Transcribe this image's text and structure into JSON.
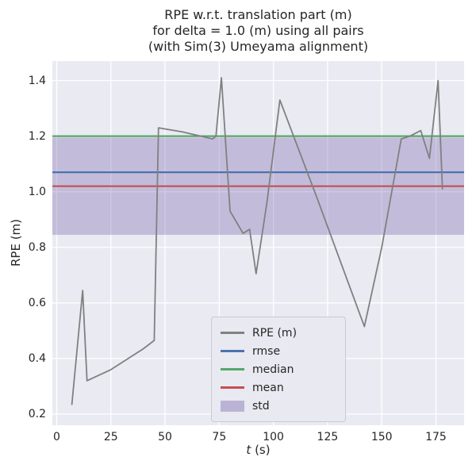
{
  "title": {
    "line1": "RPE w.r.t. translation part (m)",
    "line2": "for delta = 1.0 (m) using all pairs",
    "line3": "(with Sim(3) Umeyama alignment)"
  },
  "chart_data": {
    "type": "line",
    "title": "RPE w.r.t. translation part (m)\nfor delta = 1.0 (m) using all pairs\n(with Sim(3) Umeyama alignment)",
    "xlabel": "t (s)",
    "xlabel_var": "t",
    "xlabel_unit": "(s)",
    "ylabel": "RPE (m)",
    "xlim": [
      -2,
      188
    ],
    "ylim": [
      0.16,
      1.47
    ],
    "xticks": [
      0,
      25,
      50,
      75,
      100,
      125,
      150,
      175
    ],
    "yticks": [
      0.2,
      0.4,
      0.6,
      0.8,
      1.0,
      1.2,
      1.4
    ],
    "grid": true,
    "grid_color": "#ffffff",
    "axes_background": "#EAEAF2",
    "series": [
      {
        "name": "RPE (m)",
        "color": "#808080",
        "points": [
          [
            7,
            0.235
          ],
          [
            12,
            0.645
          ],
          [
            14,
            0.32
          ],
          [
            25,
            0.36
          ],
          [
            33,
            0.4
          ],
          [
            40,
            0.435
          ],
          [
            45,
            0.465
          ],
          [
            47,
            1.23
          ],
          [
            58,
            1.215
          ],
          [
            72,
            1.19
          ],
          [
            73.5,
            1.2
          ],
          [
            76,
            1.41
          ],
          [
            80,
            0.93
          ],
          [
            86,
            0.85
          ],
          [
            89,
            0.865
          ],
          [
            92,
            0.705
          ],
          [
            97,
            0.96
          ],
          [
            103,
            1.33
          ],
          [
            120,
            0.98
          ],
          [
            142,
            0.515
          ],
          [
            150,
            0.8
          ],
          [
            159,
            1.19
          ],
          [
            163,
            1.2
          ],
          [
            168,
            1.22
          ],
          [
            172,
            1.12
          ],
          [
            176,
            1.4
          ],
          [
            178,
            1.01
          ]
        ]
      }
    ],
    "stat_lines": [
      {
        "name": "rmse",
        "value": 1.07,
        "color": "#4C72B0"
      },
      {
        "name": "median",
        "value": 1.2,
        "color": "#55A868"
      },
      {
        "name": "mean",
        "value": 1.02,
        "color": "#C44E52"
      }
    ],
    "std_band": {
      "name": "std",
      "low": 0.845,
      "high": 1.195,
      "color": "#8172B2",
      "alpha": 0.38
    },
    "legend": {
      "position": "lower center",
      "entries": [
        {
          "label": "RPE (m)",
          "kind": "line",
          "color": "#808080"
        },
        {
          "label": "rmse",
          "kind": "line",
          "color": "#4C72B0"
        },
        {
          "label": "median",
          "kind": "line",
          "color": "#55A868"
        },
        {
          "label": "mean",
          "kind": "line",
          "color": "#C44E52"
        },
        {
          "label": "std",
          "kind": "patch",
          "color": "#8172B2"
        }
      ]
    }
  }
}
